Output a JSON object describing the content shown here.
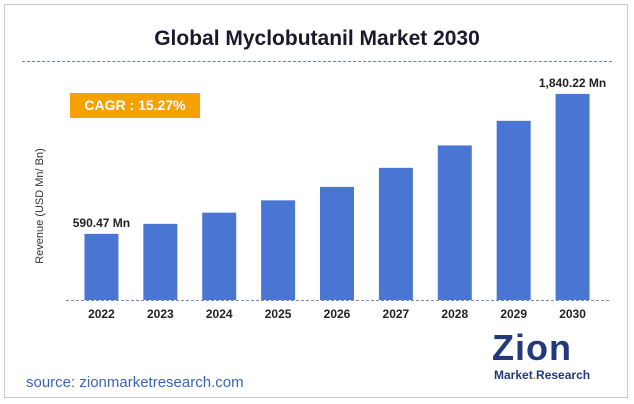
{
  "chart_data": {
    "type": "bar",
    "title": "Global Myclobutanil Market 2030",
    "ylabel": "Revenue (USD Mn/ Bn)",
    "categories": [
      "2022",
      "2023",
      "2024",
      "2025",
      "2026",
      "2027",
      "2028",
      "2029",
      "2030"
    ],
    "values": [
      590.47,
      680,
      780,
      890,
      1010,
      1180,
      1380,
      1600,
      1840.22
    ],
    "ylim": [
      0,
      2000
    ],
    "grid": false,
    "bar_color": "#4a76d3",
    "data_labels": [
      {
        "index": 0,
        "text": "590.47 Mn"
      },
      {
        "index": 8,
        "text": "1,840.22 Mn"
      }
    ],
    "annotation": "CAGR : 15.27%",
    "annotation_color": "#f5a100"
  },
  "source": "source: zionmarketresearch.com",
  "logo": {
    "name": "Zion",
    "sub_left": "Market",
    "sub_dot": ".",
    "sub_right": "Research"
  }
}
